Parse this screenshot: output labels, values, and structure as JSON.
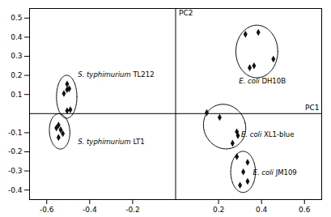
{
  "chart_data": {
    "type": "scatter",
    "xlabel": "PC1",
    "ylabel": "PC2",
    "xlim": [
      -0.68,
      0.68
    ],
    "ylim": [
      -0.45,
      0.55
    ],
    "xticks": [
      -0.6,
      -0.4,
      -0.2,
      0.2,
      0.4,
      0.6
    ],
    "yticks": [
      -0.4,
      -0.3,
      -0.2,
      -0.1,
      0.1,
      0.2,
      0.3,
      0.4,
      0.5
    ],
    "grid": false,
    "color": "#111111",
    "marker": "diamond",
    "series": [
      {
        "name": "S. typhimurium TL212",
        "x": [
          -0.505,
          -0.505,
          -0.52,
          -0.495,
          -0.505,
          -0.49
        ],
        "y": [
          0.155,
          0.125,
          0.105,
          0.13,
          0.015,
          0.02
        ],
        "ellipse": {
          "cx": -0.507,
          "cy": 0.088,
          "width": 0.095,
          "height": 0.225,
          "angle": 0
        },
        "label_x": -0.455,
        "label_y": 0.205
      },
      {
        "name": "S. typhimurium LT1",
        "x": [
          -0.545,
          -0.535,
          -0.525,
          -0.545,
          -0.555
        ],
        "y": [
          -0.06,
          -0.085,
          -0.105,
          -0.125,
          -0.075
        ],
        "ellipse": {
          "cx": -0.54,
          "cy": -0.093,
          "width": 0.095,
          "height": 0.185,
          "angle": 3
        },
        "label_x": -0.455,
        "label_y": -0.148
      },
      {
        "name": "E. coli DH10B",
        "x": [
          0.325,
          0.385,
          0.345,
          0.365,
          0.455
        ],
        "y": [
          0.415,
          0.425,
          0.24,
          0.25,
          0.285
        ],
        "ellipse": {
          "cx": 0.378,
          "cy": 0.325,
          "width": 0.195,
          "height": 0.275,
          "angle": 0
        },
        "label_x": 0.295,
        "label_y": 0.168
      },
      {
        "name": "E. coli XL1-blue",
        "x": [
          0.145,
          0.205,
          0.285,
          0.29,
          0.265
        ],
        "y": [
          0.005,
          -0.02,
          -0.095,
          -0.115,
          -0.155
        ],
        "ellipse": {
          "cx": 0.228,
          "cy": -0.068,
          "width": 0.195,
          "height": 0.235,
          "angle": 12
        },
        "label_x": 0.305,
        "label_y": -0.108
      },
      {
        "name": "E. coli JM109",
        "x": [
          0.285,
          0.335,
          0.315,
          0.335,
          0.3
        ],
        "y": [
          -0.225,
          -0.255,
          -0.305,
          -0.355,
          -0.375
        ],
        "ellipse": {
          "cx": 0.314,
          "cy": -0.305,
          "width": 0.115,
          "height": 0.215,
          "angle": 0
        },
        "label_x": 0.36,
        "label_y": -0.31
      }
    ]
  }
}
